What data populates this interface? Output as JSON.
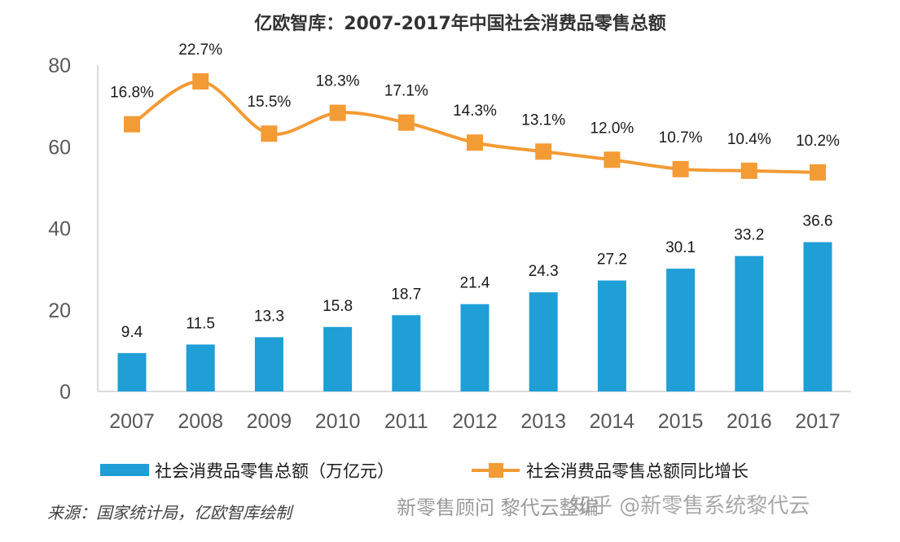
{
  "chart_data": {
    "type": "bar+line",
    "title": "亿欧智库：2007-2017年中国社会消费品零售总额",
    "categories": [
      "2007",
      "2008",
      "2009",
      "2010",
      "2011",
      "2012",
      "2013",
      "2014",
      "2015",
      "2016",
      "2017"
    ],
    "ylim": [
      0,
      80
    ],
    "yticks": [
      "0",
      "20",
      "40",
      "60",
      "80"
    ],
    "series": [
      {
        "name": "社会消费品零售总额（万亿元）",
        "type": "bar",
        "color": "#1F9FD6",
        "values": [
          9.4,
          11.5,
          13.3,
          15.8,
          18.7,
          21.4,
          24.3,
          27.2,
          30.1,
          33.2,
          36.6
        ],
        "labels": [
          "9.4",
          "11.5",
          "13.3",
          "15.8",
          "18.7",
          "21.4",
          "24.3",
          "27.2",
          "30.1",
          "33.2",
          "36.6"
        ]
      },
      {
        "name": "社会消费品零售总额同比增长",
        "type": "line",
        "color": "#F39B35",
        "values": [
          65.5,
          76.0,
          63.2,
          68.3,
          65.9,
          61.0,
          58.8,
          56.8,
          54.5,
          54.1,
          53.7
        ],
        "labels": [
          "16.8%",
          "22.7%",
          "15.5%",
          "18.3%",
          "17.1%",
          "14.3%",
          "13.1%",
          "12.0%",
          "10.7%",
          "10.4%",
          "10.2%"
        ]
      }
    ],
    "legend_position": "bottom"
  },
  "source": "来源：国家统计局，亿欧智库绘制",
  "watermark": "新零售顾问  黎代云整编",
  "watermark2": "知乎 @新零售系统黎代云"
}
